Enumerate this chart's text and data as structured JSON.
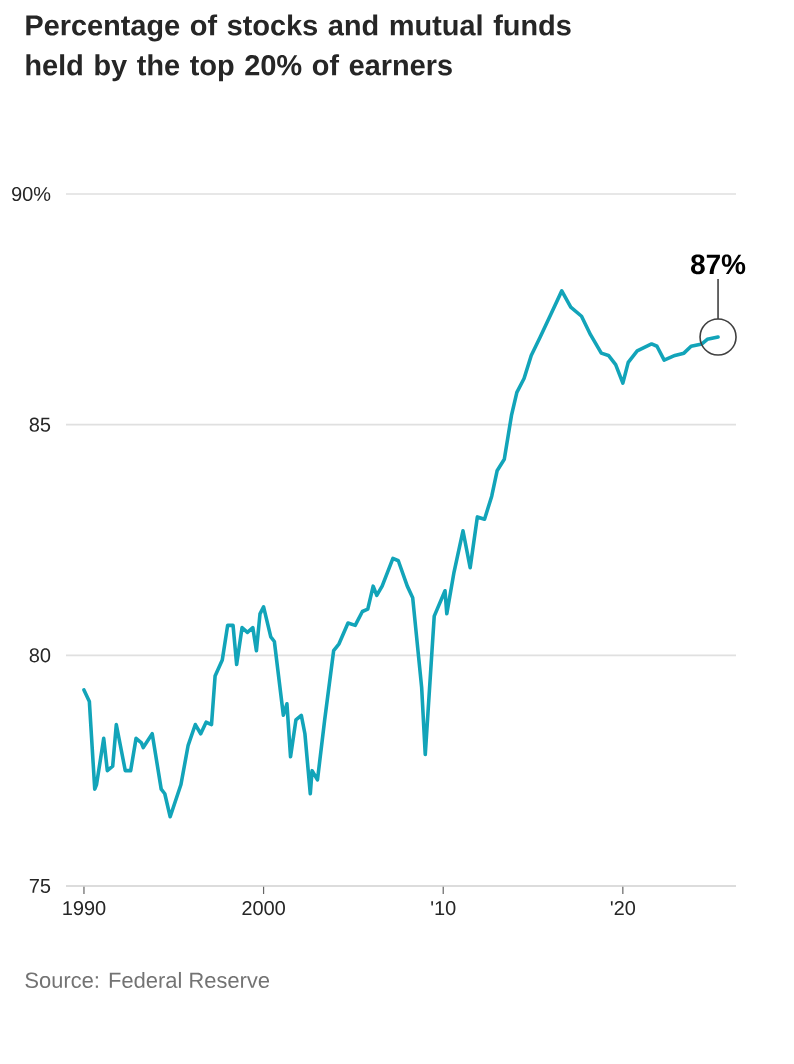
{
  "chart_data": {
    "type": "line",
    "title": "Percentage of stocks and mutual funds held by the top 20% of earners",
    "annotations": [
      {
        "text": "87%",
        "x": 2025.3,
        "y": 86.9
      },
      "Source: Federal Reserve"
    ],
    "x": [
      1990.0,
      1990.3,
      1990.6,
      1990.7,
      1991.1,
      1991.3,
      1991.6,
      1991.8,
      1992.3,
      1992.6,
      1992.9,
      1993.2,
      1993.3,
      1993.8,
      1994.3,
      1994.5,
      1994.8,
      1995.4,
      1995.8,
      1996.2,
      1996.5,
      1996.8,
      1997.1,
      1997.3,
      1997.7,
      1998.0,
      1998.3,
      1998.5,
      1998.8,
      1999.1,
      1999.4,
      1999.6,
      1999.8,
      2000.0,
      2000.4,
      2000.6,
      2001.1,
      2001.3,
      2001.5,
      2001.8,
      2002.1,
      2002.3,
      2002.6,
      2002.7,
      2003.0,
      2003.4,
      2003.9,
      2004.2,
      2004.7,
      2005.1,
      2005.5,
      2005.8,
      2006.1,
      2006.3,
      2006.6,
      2007.2,
      2007.5,
      2008.0,
      2008.3,
      2008.8,
      2009.0,
      2009.5,
      2010.1,
      2010.2,
      2010.6,
      2011.1,
      2011.5,
      2011.9,
      2012.3,
      2012.7,
      2013.0,
      2013.4,
      2013.8,
      2014.1,
      2014.5,
      2014.9,
      2015.4,
      2016.0,
      2016.6,
      2017.1,
      2017.7,
      2018.2,
      2018.8,
      2019.2,
      2019.6,
      2020.0,
      2020.3,
      2020.8,
      2021.6,
      2021.9,
      2022.3,
      2022.9,
      2023.4,
      2023.8,
      2024.4,
      2024.7,
      2025.3
    ],
    "series": [
      {
        "color": "#12a4b9",
        "values": [
          79.25,
          79.0,
          77.1,
          77.2,
          78.2,
          77.5,
          77.6,
          78.5,
          77.5,
          77.5,
          78.2,
          78.1,
          78.0,
          78.3,
          77.1,
          77.0,
          76.5,
          77.2,
          78.05,
          78.5,
          78.3,
          78.55,
          78.5,
          79.55,
          79.9,
          80.65,
          80.65,
          79.8,
          80.6,
          80.5,
          80.6,
          80.1,
          80.9,
          81.05,
          80.4,
          80.3,
          78.7,
          78.95,
          77.8,
          78.6,
          78.7,
          78.3,
          77.0,
          77.5,
          77.3,
          78.6,
          80.1,
          80.25,
          80.7,
          80.65,
          80.95,
          81.0,
          81.5,
          81.3,
          81.5,
          82.1,
          82.05,
          81.5,
          81.25,
          79.3,
          77.85,
          80.85,
          81.4,
          80.9,
          81.8,
          82.7,
          81.9,
          83.0,
          82.95,
          83.45,
          84.0,
          84.25,
          85.2,
          85.7,
          86.0,
          86.5,
          86.9,
          87.4,
          87.9,
          87.55,
          87.35,
          86.95,
          86.55,
          86.5,
          86.3,
          85.9,
          86.35,
          86.6,
          86.75,
          86.7,
          86.4,
          86.5,
          86.55,
          86.7,
          86.75,
          86.85,
          86.9
        ]
      }
    ],
    "xlim": [
      1989.0,
      2026.3
    ],
    "xticks": [
      1990,
      2000,
      {
        "value": 2010,
        "label": "'10"
      },
      {
        "value": 2020,
        "label": "'20"
      }
    ],
    "ylim": [
      75,
      90
    ],
    "yticks": [
      {
        "value": 90,
        "label": "90%"
      },
      85,
      80,
      75
    ],
    "grid": "y"
  }
}
